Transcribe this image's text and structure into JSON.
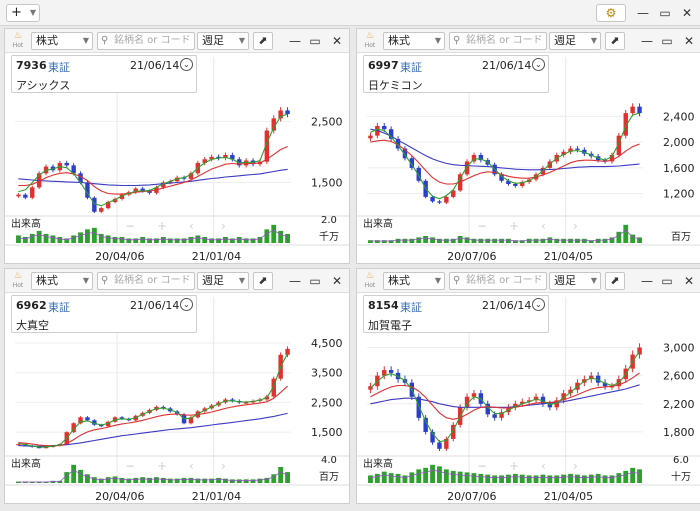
{
  "toolbar": {
    "add_label": "+",
    "add_chevron_icon": "chevron-down-icon",
    "settings_icon": "gear-icon",
    "window_controls": [
      "minimize-icon",
      "maximize-icon",
      "close-icon"
    ]
  },
  "common": {
    "type_label": "株式",
    "search_placeholder": "銘柄名 or コード",
    "period_label": "週足",
    "hot_label": "Hot",
    "volume_label": "出来高",
    "colors": {
      "up": "#e03030",
      "down": "#2b3fcc",
      "ma_short": "#2ea02e",
      "ma_mid": "#e03030",
      "ma_long": "#3b3bc4",
      "volume": "#2ea02e"
    }
  },
  "charts": [
    {
      "code": "7936",
      "exchange": "東証",
      "date": "21/06/14",
      "name": "アシックス",
      "ylim": [
        1000,
        2900
      ],
      "y_ticks": [
        {
          "value": 2500,
          "label": "2,500"
        },
        {
          "value": 1500,
          "label": "1,500"
        }
      ],
      "x_ticks": [
        "20/04/06",
        "21/01/04"
      ],
      "volume_unit": "千万",
      "volume_tick": "2.0",
      "chart_data": {
        "type": "candlestick",
        "close_path": [
          1300,
          1250,
          1420,
          1650,
          1760,
          1700,
          1820,
          1780,
          1650,
          1500,
          1250,
          1020,
          1080,
          1180,
          1230,
          1300,
          1340,
          1400,
          1360,
          1330,
          1420,
          1500,
          1520,
          1580,
          1560,
          1650,
          1820,
          1880,
          1920,
          1900,
          1950,
          1880,
          1780,
          1860,
          1800,
          1840,
          2350,
          2550,
          2680,
          2620
        ],
        "ma_short": [
          1350,
          1380,
          1500,
          1620,
          1700,
          1720,
          1760,
          1740,
          1640,
          1500,
          1320,
          1150,
          1120,
          1170,
          1220,
          1280,
          1320,
          1360,
          1360,
          1370,
          1420,
          1480,
          1520,
          1560,
          1580,
          1630,
          1740,
          1820,
          1880,
          1900,
          1910,
          1880,
          1820,
          1830,
          1830,
          1860,
          2150,
          2400,
          2580,
          2620
        ],
        "ma_mid": [
          1450,
          1450,
          1470,
          1520,
          1580,
          1620,
          1650,
          1660,
          1640,
          1600,
          1530,
          1430,
          1360,
          1320,
          1310,
          1310,
          1320,
          1340,
          1350,
          1360,
          1380,
          1410,
          1440,
          1470,
          1500,
          1540,
          1600,
          1660,
          1720,
          1760,
          1800,
          1810,
          1800,
          1810,
          1810,
          1820,
          1880,
          1960,
          2040,
          2090
        ],
        "ma_long": [
          1560,
          1550,
          1540,
          1530,
          1525,
          1520,
          1515,
          1510,
          1505,
          1500,
          1490,
          1480,
          1470,
          1460,
          1455,
          1450,
          1450,
          1450,
          1455,
          1460,
          1470,
          1480,
          1490,
          1500,
          1510,
          1520,
          1535,
          1550,
          1565,
          1575,
          1590,
          1600,
          1610,
          1620,
          1630,
          1640,
          1660,
          1680,
          1700,
          1715
        ],
        "volume": [
          0.5,
          0.4,
          0.6,
          0.8,
          0.6,
          0.5,
          0.4,
          0.3,
          0.5,
          0.7,
          0.9,
          1.0,
          0.6,
          0.5,
          0.4,
          0.4,
          0.3,
          0.3,
          0.4,
          0.3,
          0.3,
          0.4,
          0.3,
          0.3,
          0.3,
          0.4,
          0.5,
          0.4,
          0.3,
          0.3,
          0.4,
          0.3,
          0.4,
          0.3,
          0.3,
          0.4,
          0.9,
          1.2,
          0.8,
          0.6
        ]
      }
    },
    {
      "code": "6997",
      "exchange": "東証",
      "date": "21/06/14",
      "name": "日ケミコン",
      "ylim": [
        900,
        2700
      ],
      "y_ticks": [
        {
          "value": 2400,
          "label": "2,400"
        },
        {
          "value": 2000,
          "label": "2,000"
        },
        {
          "value": 1600,
          "label": "1,600"
        },
        {
          "value": 1200,
          "label": "1,200"
        }
      ],
      "x_ticks": [
        "20/07/06",
        "21/04/05"
      ],
      "volume_unit": "百万",
      "volume_tick": "",
      "chart_data": {
        "type": "candlestick",
        "close_path": [
          2100,
          2250,
          2200,
          2050,
          1900,
          1750,
          1600,
          1400,
          1150,
          1080,
          1060,
          1150,
          1250,
          1500,
          1700,
          1800,
          1720,
          1650,
          1500,
          1400,
          1350,
          1320,
          1380,
          1420,
          1500,
          1600,
          1700,
          1800,
          1850,
          1900,
          1880,
          1820,
          1780,
          1720,
          1700,
          1800,
          2100,
          2450,
          2550,
          2450
        ],
        "ma_short": [
          2150,
          2200,
          2180,
          2080,
          1950,
          1800,
          1650,
          1480,
          1280,
          1160,
          1120,
          1170,
          1260,
          1440,
          1620,
          1740,
          1740,
          1690,
          1580,
          1470,
          1400,
          1360,
          1370,
          1400,
          1470,
          1560,
          1660,
          1750,
          1810,
          1860,
          1870,
          1840,
          1800,
          1750,
          1720,
          1780,
          1980,
          2250,
          2420,
          2450
        ],
        "ma_mid": [
          2000,
          2020,
          2030,
          2010,
          1960,
          1880,
          1790,
          1680,
          1560,
          1450,
          1380,
          1350,
          1350,
          1380,
          1430,
          1480,
          1520,
          1540,
          1530,
          1500,
          1470,
          1450,
          1440,
          1440,
          1460,
          1490,
          1530,
          1580,
          1630,
          1680,
          1710,
          1720,
          1720,
          1710,
          1700,
          1720,
          1780,
          1860,
          1930,
          1970
        ],
        "ma_long": [
          2200,
          2180,
          2140,
          2090,
          2030,
          1970,
          1910,
          1850,
          1790,
          1740,
          1700,
          1670,
          1650,
          1640,
          1635,
          1630,
          1625,
          1620,
          1610,
          1600,
          1590,
          1580,
          1575,
          1570,
          1570,
          1570,
          1575,
          1580,
          1590,
          1600,
          1610,
          1615,
          1620,
          1620,
          1620,
          1625,
          1630,
          1640,
          1650,
          1660
        ],
        "volume": [
          0.2,
          0.2,
          0.2,
          0.2,
          0.3,
          0.3,
          0.3,
          0.4,
          0.5,
          0.4,
          0.3,
          0.3,
          0.3,
          0.5,
          0.4,
          0.3,
          0.3,
          0.3,
          0.3,
          0.3,
          0.3,
          0.2,
          0.2,
          0.3,
          0.3,
          0.3,
          0.4,
          0.3,
          0.3,
          0.3,
          0.3,
          0.3,
          0.2,
          0.3,
          0.3,
          0.4,
          0.8,
          1.3,
          0.6,
          0.4
        ]
      }
    },
    {
      "code": "6962",
      "exchange": "東証",
      "date": "21/06/14",
      "name": "大真空",
      "ylim": [
        800,
        4700
      ],
      "y_ticks": [
        {
          "value": 4500,
          "label": "4,500"
        },
        {
          "value": 3500,
          "label": "3,500"
        },
        {
          "value": 2500,
          "label": "2,500"
        },
        {
          "value": 1500,
          "label": "1,500"
        }
      ],
      "x_ticks": [
        "20/04/06",
        "21/01/04"
      ],
      "volume_unit": "百万",
      "volume_tick": "4.0",
      "chart_data": {
        "type": "candlestick",
        "close_path": [
          1100,
          1050,
          1000,
          980,
          1000,
          1050,
          1100,
          1500,
          1800,
          2000,
          1900,
          1750,
          1700,
          1850,
          2000,
          1950,
          1900,
          2050,
          2150,
          2250,
          2350,
          2300,
          2200,
          2100,
          1800,
          2000,
          2200,
          2300,
          2400,
          2500,
          2600,
          2550,
          2500,
          2500,
          2550,
          2600,
          2700,
          3300,
          4100,
          4300
        ],
        "ma_short": [
          1120,
          1080,
          1030,
          1000,
          1000,
          1030,
          1070,
          1300,
          1600,
          1850,
          1880,
          1800,
          1740,
          1800,
          1920,
          1950,
          1930,
          1990,
          2100,
          2200,
          2300,
          2310,
          2250,
          2160,
          1950,
          1970,
          2120,
          2240,
          2350,
          2450,
          2550,
          2560,
          2520,
          2510,
          2530,
          2580,
          2660,
          3050,
          3700,
          4150
        ],
        "ma_mid": [
          1150,
          1130,
          1100,
          1070,
          1050,
          1040,
          1050,
          1120,
          1250,
          1400,
          1510,
          1580,
          1620,
          1670,
          1730,
          1780,
          1810,
          1850,
          1900,
          1960,
          2020,
          2070,
          2100,
          2110,
          2080,
          2070,
          2090,
          2130,
          2180,
          2240,
          2300,
          2350,
          2390,
          2420,
          2450,
          2480,
          2520,
          2640,
          2840,
          3050
        ],
        "ma_long": [
          1050,
          1040,
          1030,
          1030,
          1040,
          1050,
          1060,
          1080,
          1110,
          1140,
          1180,
          1220,
          1260,
          1300,
          1340,
          1380,
          1410,
          1440,
          1470,
          1500,
          1530,
          1560,
          1590,
          1610,
          1630,
          1650,
          1680,
          1710,
          1740,
          1770,
          1800,
          1830,
          1860,
          1890,
          1920,
          1950,
          1990,
          2030,
          2080,
          2130
        ],
        "volume": [
          0.2,
          0.2,
          0.2,
          0.2,
          0.2,
          0.3,
          0.3,
          1.5,
          2.5,
          1.8,
          1.2,
          0.8,
          0.6,
          0.8,
          0.9,
          0.7,
          0.6,
          0.7,
          0.8,
          0.7,
          0.8,
          0.7,
          0.6,
          0.6,
          0.7,
          0.7,
          0.6,
          0.6,
          0.6,
          0.7,
          0.6,
          0.5,
          0.5,
          0.5,
          0.5,
          0.6,
          0.7,
          1.2,
          2.2,
          1.5
        ]
      }
    },
    {
      "code": "8154",
      "exchange": "東証",
      "date": "21/06/14",
      "name": "加賀電子",
      "ylim": [
        1500,
        3150
      ],
      "y_ticks": [
        {
          "value": 3000,
          "label": "3,000"
        },
        {
          "value": 2600,
          "label": "2,600"
        },
        {
          "value": 2200,
          "label": "2,200"
        },
        {
          "value": 1800,
          "label": "1,800"
        }
      ],
      "x_ticks": [
        "20/07/06",
        "21/04/05"
      ],
      "volume_unit": "十万",
      "volume_tick": "6.0",
      "chart_data": {
        "type": "candlestick",
        "close_path": [
          2450,
          2600,
          2680,
          2640,
          2550,
          2500,
          2300,
          2000,
          1800,
          1650,
          1560,
          1700,
          1900,
          2150,
          2300,
          2350,
          2200,
          2050,
          2000,
          2080,
          2150,
          2200,
          2230,
          2250,
          2300,
          2200,
          2150,
          2250,
          2350,
          2400,
          2500,
          2550,
          2600,
          2500,
          2450,
          2450,
          2550,
          2700,
          2900,
          3000
        ],
        "ma_short": [
          2420,
          2520,
          2600,
          2630,
          2590,
          2530,
          2400,
          2170,
          1950,
          1780,
          1660,
          1680,
          1820,
          2020,
          2200,
          2300,
          2270,
          2150,
          2060,
          2060,
          2110,
          2160,
          2200,
          2230,
          2270,
          2240,
          2190,
          2210,
          2290,
          2360,
          2450,
          2520,
          2570,
          2540,
          2490,
          2460,
          2500,
          2620,
          2800,
          2950
        ],
        "ma_mid": [
          2300,
          2350,
          2400,
          2440,
          2460,
          2460,
          2440,
          2380,
          2290,
          2180,
          2070,
          2000,
          1980,
          2000,
          2050,
          2110,
          2150,
          2160,
          2150,
          2140,
          2140,
          2150,
          2170,
          2190,
          2210,
          2220,
          2220,
          2230,
          2260,
          2290,
          2330,
          2370,
          2410,
          2430,
          2440,
          2450,
          2470,
          2510,
          2570,
          2640
        ],
        "ma_long": [
          2200,
          2220,
          2240,
          2260,
          2270,
          2280,
          2280,
          2270,
          2250,
          2230,
          2200,
          2180,
          2160,
          2150,
          2150,
          2150,
          2150,
          2150,
          2150,
          2150,
          2150,
          2160,
          2170,
          2180,
          2190,
          2200,
          2210,
          2220,
          2230,
          2250,
          2270,
          2290,
          2310,
          2330,
          2350,
          2370,
          2390,
          2410,
          2440,
          2470
        ],
        "volume": [
          1.0,
          1.2,
          1.5,
          1.3,
          1.2,
          1.0,
          1.4,
          1.8,
          2.0,
          2.4,
          2.2,
          1.8,
          1.6,
          1.5,
          1.4,
          1.3,
          1.2,
          1.1,
          1.0,
          1.0,
          1.1,
          1.2,
          1.1,
          1.0,
          1.0,
          1.1,
          1.0,
          1.0,
          1.1,
          1.2,
          1.1,
          1.0,
          1.1,
          1.2,
          1.0,
          1.0,
          1.3,
          1.6,
          2.0,
          1.8
        ]
      }
    }
  ]
}
